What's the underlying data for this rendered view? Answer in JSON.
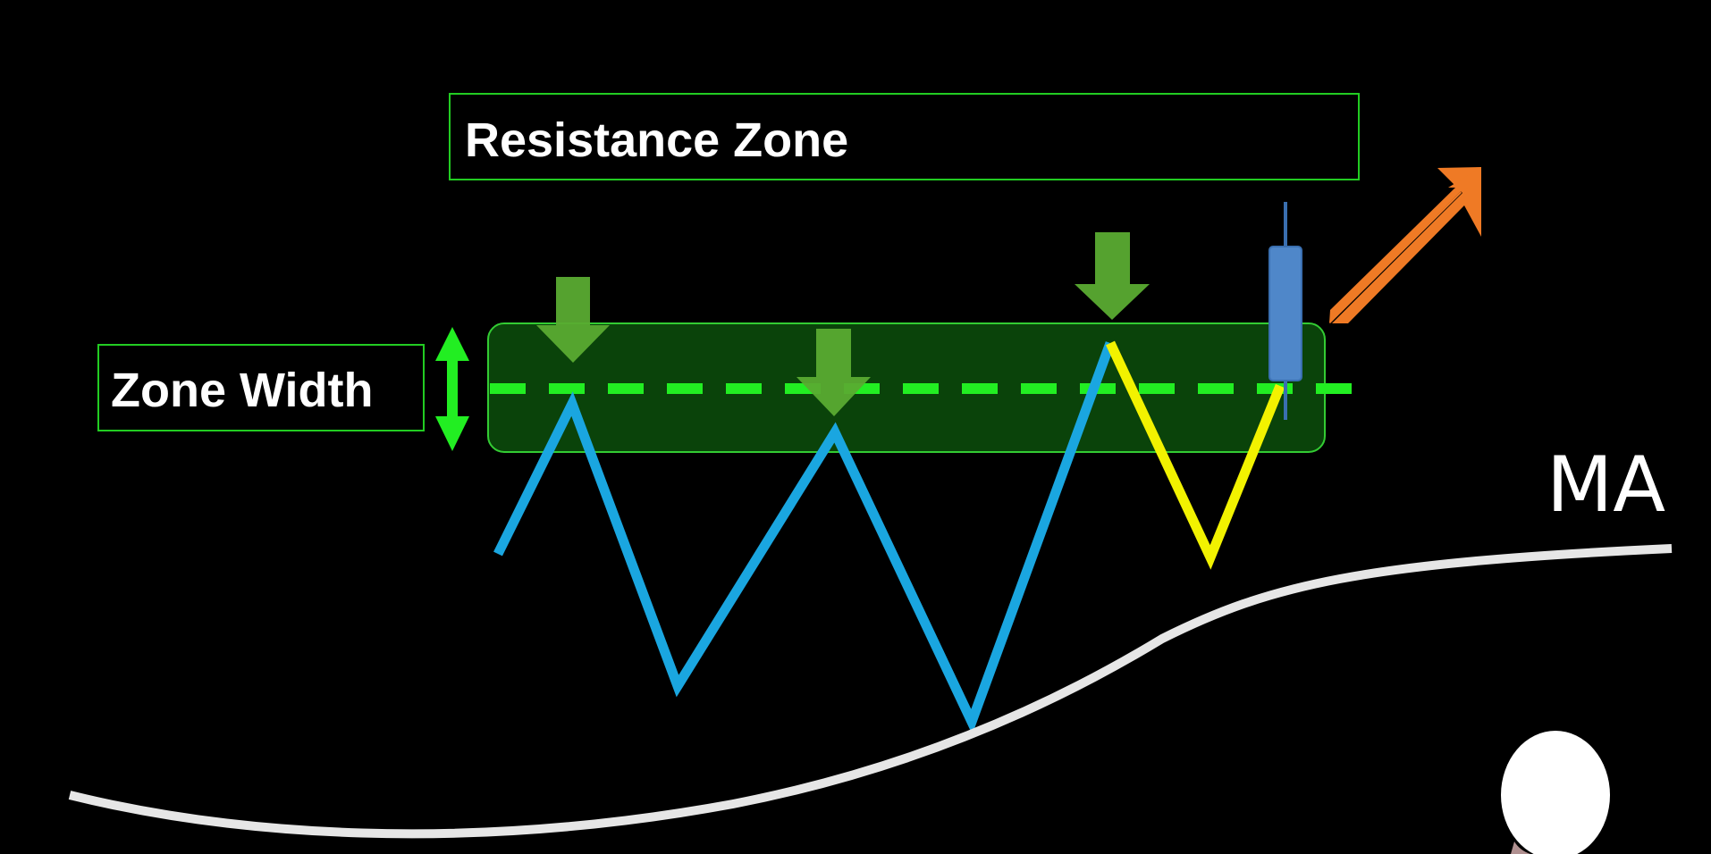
{
  "labels": {
    "resistance_zone": "Resistance Zone",
    "zone_width": "Zone Width",
    "ma": "MA"
  },
  "colors": {
    "background": "#000000",
    "zone_fill": "#0b4a0b",
    "zone_outline": "#33cc33",
    "dashed_level": "#22ee22",
    "label_box_border": "#22cc22",
    "price_line": "#1aa6e0",
    "pullback_line": "#f2f200",
    "touch_arrow": "#5aab32",
    "width_arrow": "#22ee22",
    "candle": "#4f87c9",
    "breakout_arrow": "#ef7a25",
    "moving_average": "#e6e6e6"
  },
  "icons": {
    "touch_arrows": [
      "down-arrow-icon",
      "down-arrow-icon",
      "down-arrow-icon"
    ],
    "width_arrow": "double-headed-vertical-arrow-icon",
    "breakout_arrow": "up-right-arrow-icon",
    "candle": "bullish-candlestick-icon"
  }
}
